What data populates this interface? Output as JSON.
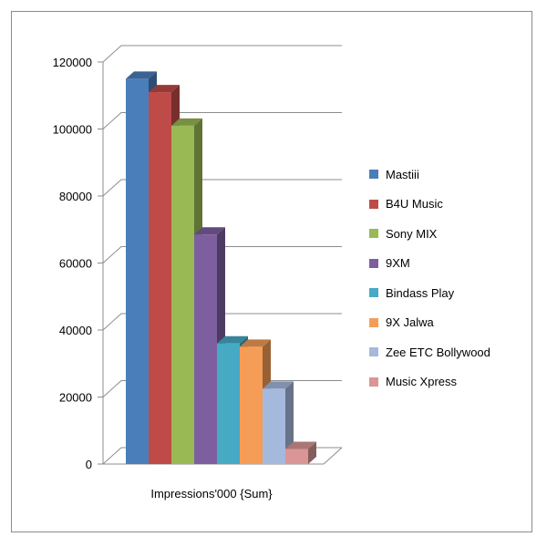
{
  "chart_data": {
    "type": "bar",
    "style": "3d-clustered-column",
    "xlabel": "Impressions'000 {Sum}",
    "ylabel": "",
    "ylim": [
      0,
      120000
    ],
    "yticks": [
      0,
      20000,
      40000,
      60000,
      80000,
      100000,
      120000
    ],
    "ytick_labels": [
      "0",
      "20000",
      "40000",
      "60000",
      "80000",
      "100000",
      "120000"
    ],
    "grid": true,
    "legend_position": "right",
    "series": [
      {
        "name": "Mastiii",
        "value": 115000,
        "color": "#4a7ebb"
      },
      {
        "name": "B4U Music",
        "value": 111000,
        "color": "#be4b48"
      },
      {
        "name": "Sony MIX",
        "value": 101000,
        "color": "#98b954"
      },
      {
        "name": "9XM",
        "value": 68500,
        "color": "#7d5fa0"
      },
      {
        "name": "Bindass Play",
        "value": 36000,
        "color": "#46aac5"
      },
      {
        "name": "9X Jalwa",
        "value": 35000,
        "color": "#f59d56"
      },
      {
        "name": "Zee ETC Bollywood",
        "value": 22500,
        "color": "#a5b9dc"
      },
      {
        "name": "Music Xpress",
        "value": 4500,
        "color": "#da9695"
      }
    ]
  }
}
